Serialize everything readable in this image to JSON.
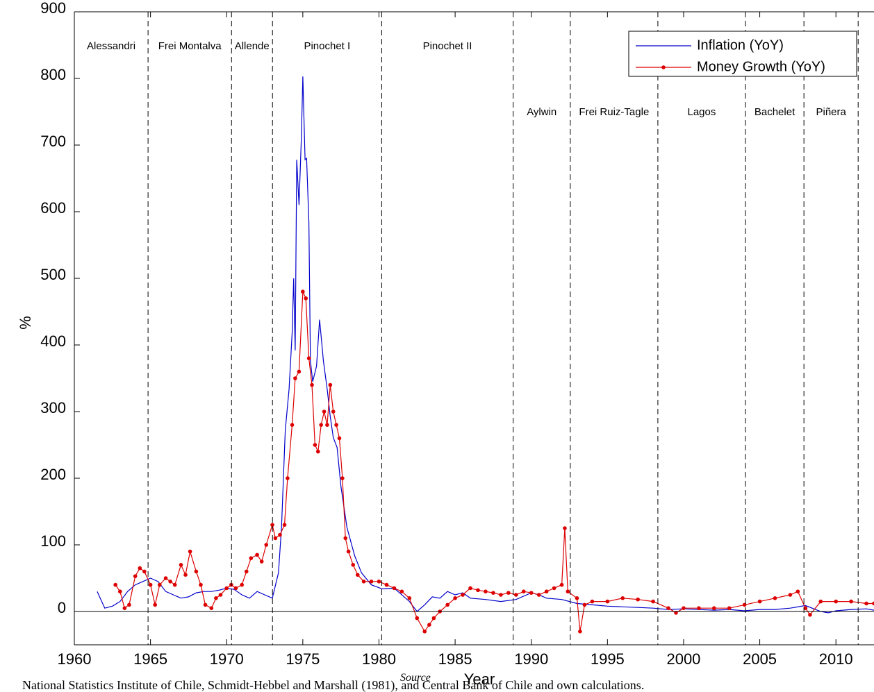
{
  "chart_data": {
    "type": "line",
    "xlabel": "Year",
    "ylabel": "%",
    "xlim": [
      1960,
      2012.5
    ],
    "ylim": [
      -50,
      900
    ],
    "xticks": [
      1960,
      1965,
      1970,
      1975,
      1980,
      1985,
      1990,
      1995,
      2000,
      2005,
      2010
    ],
    "yticks": [
      0,
      100,
      200,
      300,
      400,
      500,
      600,
      700,
      800,
      900
    ],
    "legend": "upper right",
    "regimes": [
      "Alessandri",
      "Frei Montalva",
      "Allende",
      "Pinochet I",
      "Pinochet II",
      "Aylwin",
      "Frei Ruiz-Tagle",
      "Lagos",
      "Bachelet",
      "Piñera"
    ],
    "boundaries": [
      1964.84,
      1970.32,
      1973.01,
      1980.18,
      1988.81,
      1992.56,
      1998.31,
      2004.06,
      2007.9,
      2011.46
    ],
    "source_label": "Source",
    "source_text": "National Statistics Institute of Chile, Schmidt-Hebbel and Marshall (1981), and Central Bank of Chile and own calculations.",
    "series": [
      {
        "name": "Inflation (YoY)",
        "color": "#0000cc",
        "markers": false,
        "x": [
          1961.5,
          1962,
          1962.5,
          1963,
          1963.5,
          1964,
          1964.5,
          1965,
          1965.5,
          1966,
          1966.5,
          1967,
          1967.5,
          1968,
          1968.5,
          1969,
          1969.5,
          1970,
          1970.5,
          1971,
          1971.5,
          1972,
          1972.5,
          1973,
          1973.4,
          1973.6,
          1973.85,
          1974.1,
          1974.3,
          1974.4,
          1974.5,
          1974.6,
          1974.75,
          1974.9,
          1975,
          1975.15,
          1975.25,
          1975.4,
          1975.5,
          1975.65,
          1975.9,
          1976.1,
          1976.35,
          1976.6,
          1976.8,
          1977,
          1977.25,
          1977.5,
          1977.9,
          1978.4,
          1978.85,
          1979.5,
          1980.2,
          1981,
          1982,
          1982.5,
          1983,
          1983.5,
          1984,
          1984.5,
          1985,
          1985.5,
          1986,
          1987,
          1988,
          1989,
          1990,
          1990.5,
          1991,
          1992,
          1993,
          1994,
          1995,
          1996,
          1997,
          1998,
          1999,
          2000,
          2001,
          2002,
          2003,
          2004,
          2005,
          2006,
          2007,
          2008,
          2009,
          2009.5,
          2010,
          2011,
          2012,
          2012.5
        ],
        "values": [
          30,
          5,
          8,
          15,
          30,
          40,
          45,
          50,
          45,
          30,
          25,
          20,
          22,
          28,
          30,
          30,
          32,
          35,
          33,
          25,
          20,
          30,
          25,
          20,
          58,
          126,
          272,
          334,
          418,
          500,
          392,
          678,
          610,
          709,
          803,
          678,
          680,
          584,
          376,
          345,
          368,
          438,
          376,
          334,
          293,
          261,
          246,
          188,
          126,
          84,
          58,
          40,
          34,
          35,
          15,
          0,
          10,
          22,
          20,
          30,
          25,
          28,
          20,
          18,
          15,
          18,
          28,
          25,
          20,
          18,
          12,
          10,
          8,
          7,
          6,
          5,
          3,
          4,
          3,
          2,
          3,
          1,
          3,
          3,
          5,
          9,
          0,
          -2,
          1,
          3,
          4,
          2
        ]
      },
      {
        "name": "Money Growth (YoY)",
        "color": "#dd0000",
        "markers": true,
        "x": [
          1962.7,
          1963,
          1963.3,
          1963.6,
          1964,
          1964.3,
          1964.6,
          1965,
          1965.3,
          1965.6,
          1966,
          1966.3,
          1966.6,
          1967,
          1967.3,
          1967.6,
          1968,
          1968.3,
          1968.6,
          1969,
          1969.3,
          1969.6,
          1970,
          1970.3,
          1970.6,
          1971,
          1971.3,
          1971.6,
          1972,
          1972.3,
          1972.6,
          1973,
          1973.2,
          1973.5,
          1973.8,
          1974,
          1974.3,
          1974.5,
          1974.75,
          1975,
          1975.2,
          1975.4,
          1975.6,
          1975.8,
          1976,
          1976.2,
          1976.4,
          1976.6,
          1976.8,
          1977,
          1977.2,
          1977.4,
          1977.6,
          1977.8,
          1978,
          1978.3,
          1978.6,
          1979,
          1979.5,
          1980,
          1980.5,
          1981,
          1981.5,
          1982,
          1982.5,
          1983,
          1983.3,
          1983.6,
          1984,
          1984.5,
          1985,
          1985.5,
          1986,
          1986.5,
          1987,
          1987.5,
          1988,
          1988.5,
          1989,
          1989.5,
          1990,
          1990.5,
          1991,
          1991.5,
          1992,
          1992.2,
          1992.4,
          1993,
          1993.2,
          1993.5,
          1994,
          1995,
          1996,
          1997,
          1998,
          1999,
          1999.5,
          2000,
          2001,
          2002,
          2003,
          2004,
          2005,
          2006,
          2007,
          2007.5,
          2008,
          2008.3,
          2009,
          2010,
          2011,
          2012,
          2012.5
        ],
        "values": [
          40,
          30,
          5,
          10,
          53,
          65,
          60,
          40,
          10,
          40,
          50,
          45,
          40,
          70,
          55,
          90,
          60,
          40,
          10,
          5,
          20,
          25,
          35,
          40,
          35,
          40,
          60,
          80,
          85,
          75,
          100,
          130,
          110,
          115,
          130,
          200,
          280,
          350,
          360,
          480,
          470,
          380,
          340,
          250,
          240,
          280,
          300,
          280,
          340,
          300,
          280,
          260,
          200,
          110,
          90,
          70,
          55,
          45,
          45,
          45,
          40,
          35,
          30,
          20,
          -10,
          -30,
          -20,
          -10,
          0,
          10,
          20,
          25,
          35,
          32,
          30,
          28,
          25,
          28,
          25,
          30,
          28,
          25,
          30,
          35,
          40,
          125,
          30,
          20,
          -30,
          10,
          15,
          15,
          20,
          18,
          15,
          5,
          -2,
          5,
          5,
          5,
          5,
          10,
          15,
          20,
          25,
          30,
          5,
          -5,
          15,
          15,
          15,
          12,
          12
        ]
      }
    ]
  }
}
